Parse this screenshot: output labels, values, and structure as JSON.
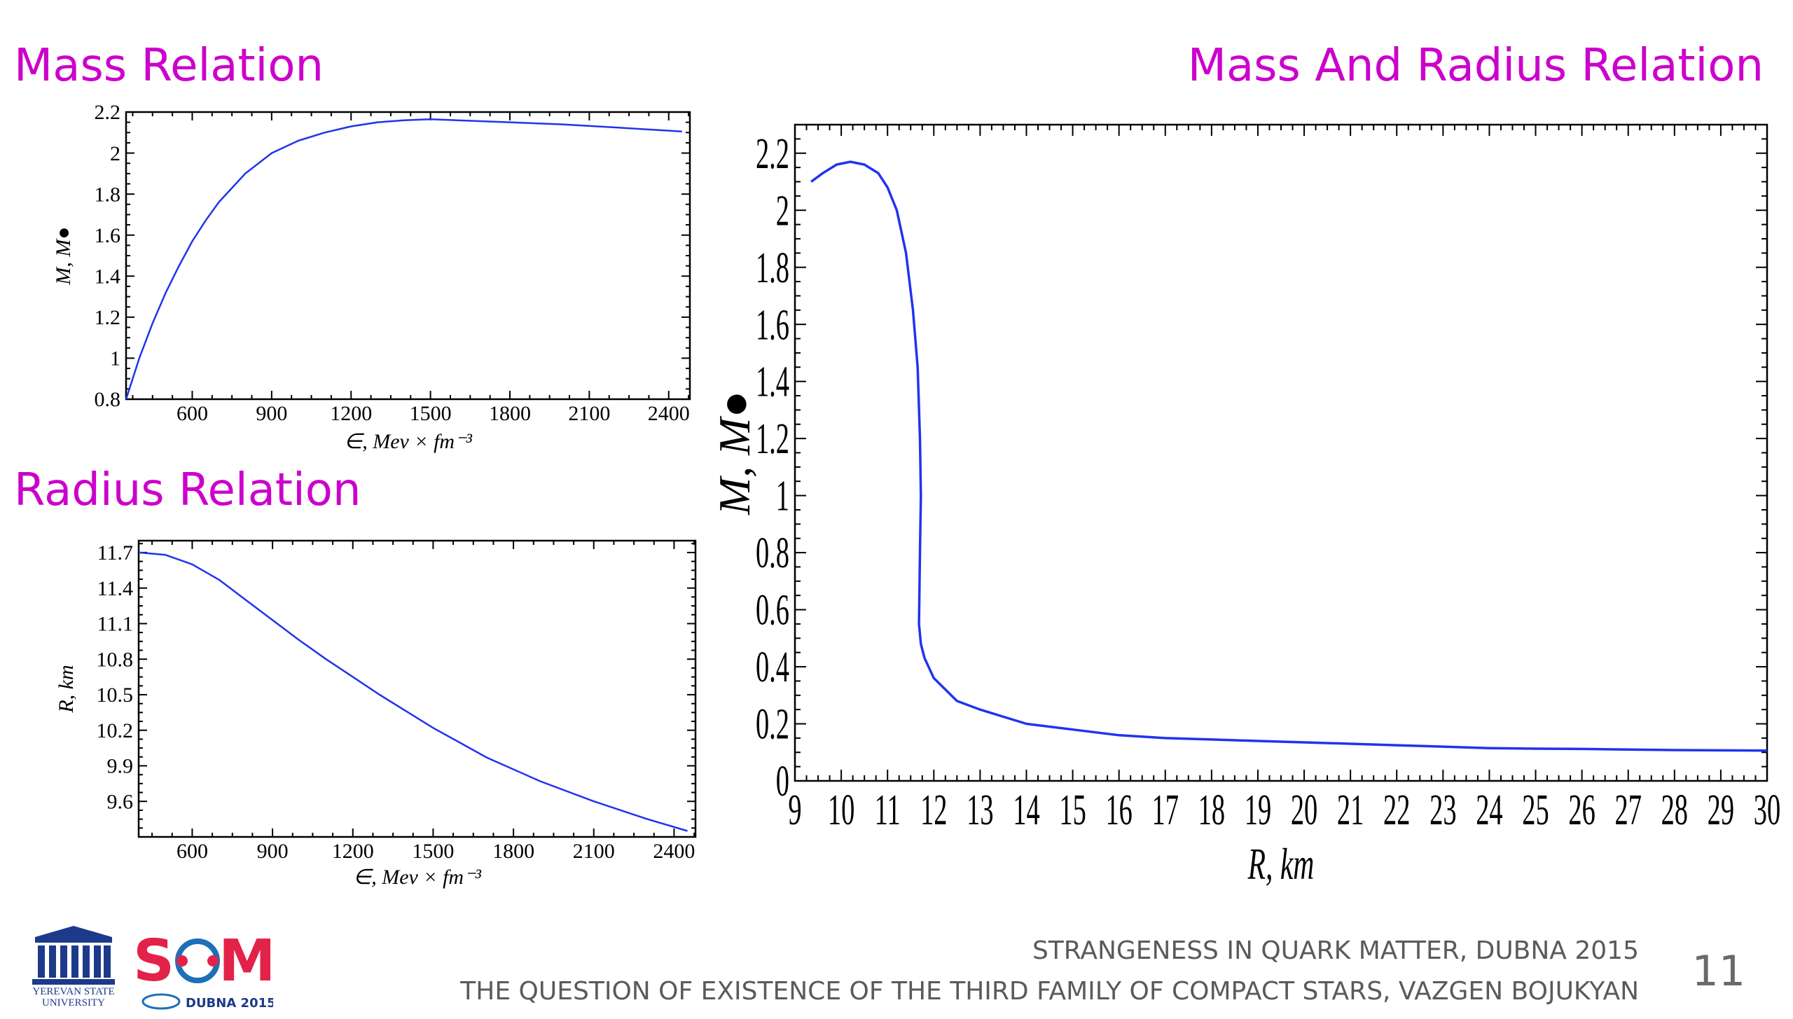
{
  "headings": {
    "mass": "Mass Relation",
    "radius": "Radius Relation",
    "mass_radius": "Mass And Radius Relation"
  },
  "footer": {
    "conference": "STRANGENESS IN QUARK MATTER,  DUBNA 2015",
    "title": "THE QUESTION OF EXISTENCE OF THE THIRD FAMILY OF COMPACT STARS, VAZGEN BOJUKYAN",
    "page_number": "11"
  },
  "logos": {
    "ysu_text": "YEREVAN STATE UNIVERSITY",
    "sqm_text": "SQM",
    "sqm_sub": "DUBNA 2015"
  },
  "colors": {
    "heading": "#cc00cc",
    "curve": "#2233ee",
    "footer": "#5a5a5a"
  },
  "chart_data": [
    {
      "id": "mass",
      "type": "line",
      "xlabel": "∈, Mev × fm⁻³",
      "ylabel": "M, M●",
      "xlim": [
        350,
        2480
      ],
      "ylim": [
        0.8,
        2.2
      ],
      "xticks": [
        "600",
        "900",
        "1200",
        "1500",
        "1800",
        "2100",
        "2400"
      ],
      "yticks": [
        "0.8",
        "1",
        "1.2",
        "1.4",
        "1.6",
        "1.8",
        "2",
        "2.2"
      ],
      "series": [
        {
          "x": [
            350,
            400,
            450,
            500,
            550,
            600,
            650,
            700,
            800,
            900,
            1000,
            1100,
            1200,
            1300,
            1400,
            1500,
            1600,
            1800,
            2000,
            2200,
            2450
          ],
          "y": [
            0.8,
            1.0,
            1.17,
            1.32,
            1.45,
            1.57,
            1.67,
            1.76,
            1.9,
            2.0,
            2.06,
            2.1,
            2.13,
            2.15,
            2.16,
            2.165,
            2.16,
            2.15,
            2.14,
            2.125,
            2.105
          ]
        }
      ]
    },
    {
      "id": "radius",
      "type": "line",
      "xlabel": "∈, Mev × fm⁻³",
      "ylabel": "R, km",
      "xlim": [
        400,
        2480
      ],
      "ylim": [
        9.3,
        11.8
      ],
      "xticks": [
        "600",
        "900",
        "1200",
        "1500",
        "1800",
        "2100",
        "2400"
      ],
      "yticks": [
        "9.6",
        "9.9",
        "10.2",
        "10.5",
        "10.8",
        "11.1",
        "11.4",
        "11.7"
      ],
      "series": [
        {
          "x": [
            400,
            500,
            600,
            700,
            800,
            900,
            1000,
            1100,
            1200,
            1300,
            1500,
            1700,
            1900,
            2100,
            2300,
            2450
          ],
          "y": [
            11.7,
            11.68,
            11.6,
            11.47,
            11.3,
            11.13,
            10.96,
            10.8,
            10.65,
            10.5,
            10.22,
            9.97,
            9.77,
            9.6,
            9.45,
            9.35
          ]
        }
      ]
    },
    {
      "id": "mass-radius",
      "type": "line",
      "xlabel": "R, km",
      "ylabel": "M, M●",
      "xlim": [
        9,
        30
      ],
      "ylim": [
        0,
        2.3
      ],
      "xticks": [
        "9",
        "10",
        "11",
        "12",
        "13",
        "14",
        "15",
        "16",
        "17",
        "18",
        "19",
        "20",
        "21",
        "22",
        "23",
        "24",
        "25",
        "26",
        "27",
        "28",
        "29",
        "30"
      ],
      "yticks": [
        "0",
        "0.2",
        "0.4",
        "0.6",
        "0.8",
        "1",
        "1.2",
        "1.4",
        "1.6",
        "1.8",
        "2",
        "2.2"
      ],
      "series": [
        {
          "x": [
            9.35,
            9.6,
            9.9,
            10.2,
            10.5,
            10.8,
            11.0,
            11.2,
            11.4,
            11.55,
            11.65,
            11.7,
            11.72,
            11.7,
            11.68,
            11.72,
            11.8,
            12.0,
            12.5,
            13.0,
            14.0,
            15.0,
            16.0,
            17.0,
            18.0,
            19.0,
            20.0,
            21.0,
            22.0,
            23.0,
            24.0,
            25.0,
            26.0,
            27.0,
            28.0,
            29.0,
            30.0
          ],
          "y": [
            2.1,
            2.13,
            2.16,
            2.17,
            2.16,
            2.13,
            2.08,
            2.0,
            1.85,
            1.65,
            1.45,
            1.2,
            1.0,
            0.8,
            0.55,
            0.48,
            0.43,
            0.36,
            0.28,
            0.25,
            0.2,
            0.18,
            0.16,
            0.15,
            0.145,
            0.14,
            0.135,
            0.13,
            0.125,
            0.12,
            0.115,
            0.113,
            0.112,
            0.11,
            0.108,
            0.107,
            0.106
          ]
        }
      ]
    }
  ]
}
